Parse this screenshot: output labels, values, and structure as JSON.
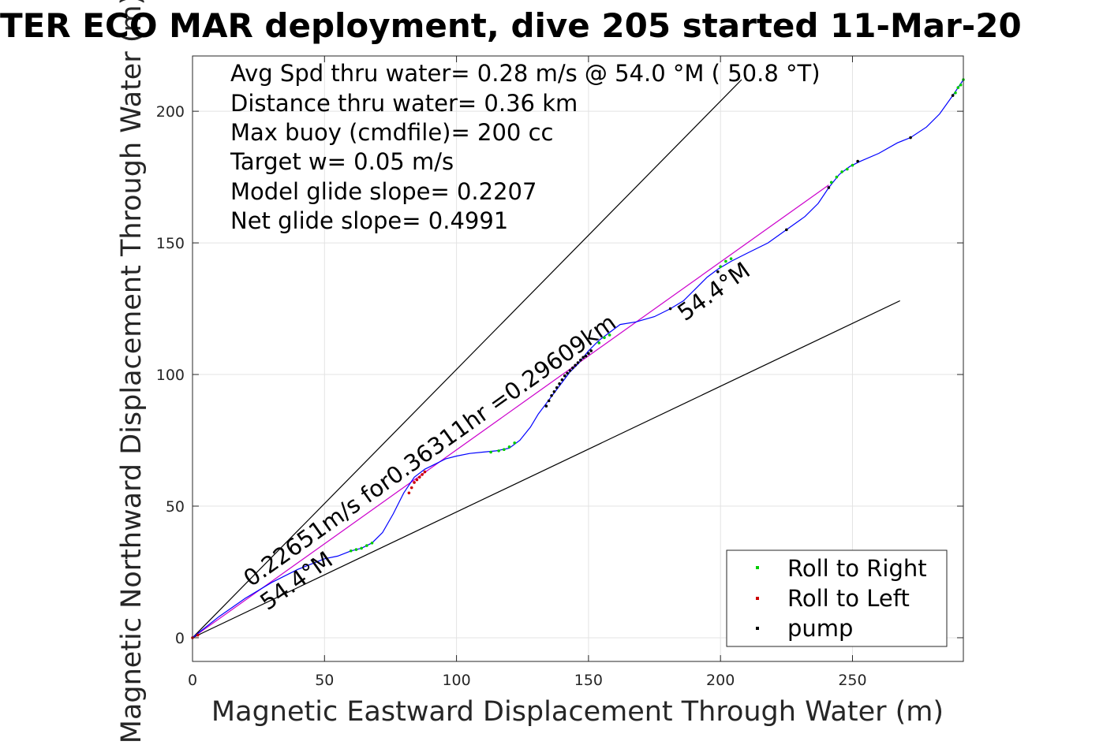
{
  "chart_data": {
    "type": "scatter",
    "title": "TER ECO MAR deployment, dive 205 started 11-Mar-20",
    "xlabel": "Magnetic Eastward Displacement Through Water (m)",
    "ylabel": "Magnetic Northward Displacement Through Water (m)",
    "xlim": [
      0,
      292
    ],
    "ylim": [
      -9,
      221
    ],
    "xticks": [
      0,
      50,
      100,
      150,
      200,
      250
    ],
    "yticks": [
      0,
      50,
      100,
      150,
      200
    ],
    "grid": true,
    "legend_position": "bottom-right",
    "info_lines": [
      "Avg Spd thru water=  0.28 m/s @  54.0 °M ( 50.8 °T)",
      "Distance thru water=  0.36 km",
      "Max buoy (cmdfile)= 200 cc",
      "Target w= 0.05 m/s",
      "Model glide slope= 0.2207",
      "Net glide slope= 0.4991"
    ],
    "annotations": {
      "avg_vector": "0.22651m/s for0.36311hr =0.29609km",
      "heading_lower": "54.4°M",
      "heading_upper": "54.4°M"
    },
    "lines": [
      {
        "role": "upper-bound",
        "color": "#000000",
        "x": [
          0,
          208
        ],
        "y": [
          0,
          212
        ]
      },
      {
        "role": "lower-bound",
        "color": "#000000",
        "x": [
          0,
          268
        ],
        "y": [
          0,
          128
        ]
      },
      {
        "role": "net-displacement",
        "color": "#cc00cc",
        "x": [
          0,
          241
        ],
        "y": [
          0,
          172
        ]
      },
      {
        "role": "track",
        "color": "#0000ff",
        "x": [
          0,
          10,
          20,
          30,
          40,
          50,
          55,
          60,
          64,
          68,
          72,
          76,
          80,
          84,
          88,
          92,
          96,
          100,
          105,
          110,
          115,
          120,
          124,
          128,
          131,
          134,
          137,
          140,
          143,
          146,
          150,
          154,
          158,
          162,
          168,
          175,
          181,
          186,
          191,
          195,
          199,
          204,
          210,
          218,
          225,
          232,
          237,
          241,
          245,
          249,
          253,
          260,
          267,
          272,
          278,
          283,
          288,
          292
        ],
        "y": [
          0,
          8,
          15,
          21,
          26,
          30,
          31,
          33,
          34,
          36,
          40,
          47,
          55,
          61,
          64,
          66,
          68,
          69,
          70,
          70.5,
          71,
          72,
          75,
          80,
          85,
          89,
          93,
          97,
          101,
          104,
          109,
          113,
          116,
          119,
          120,
          122,
          125,
          128,
          133,
          137,
          140,
          143,
          146,
          150,
          155,
          160,
          165,
          171,
          176,
          179,
          181,
          184,
          188,
          190,
          194,
          199,
          206,
          212
        ]
      }
    ],
    "series": [
      {
        "name": "Roll to Right",
        "color": "#00cc00",
        "x": [
          60,
          62,
          64,
          66,
          68,
          113,
          116,
          118,
          120,
          122,
          154,
          156,
          158,
          200,
          202,
          204,
          242,
          244,
          246,
          248,
          250,
          289,
          290,
          291,
          292
        ],
        "y": [
          33,
          33.5,
          34,
          35,
          36,
          70.5,
          71,
          71.5,
          72.5,
          74,
          112,
          114,
          115,
          141,
          143,
          144,
          173,
          175,
          177,
          178,
          179.5,
          207,
          209,
          210,
          212
        ]
      },
      {
        "name": "Roll to Left",
        "color": "#cc0000",
        "x": [
          0,
          2,
          82,
          83,
          84,
          85,
          86,
          87,
          88
        ],
        "y": [
          0,
          1,
          55,
          57,
          59,
          60,
          61,
          62,
          63
        ]
      },
      {
        "name": "pump",
        "color": "#000000",
        "x": [
          134,
          135,
          136,
          137,
          138,
          139,
          140,
          141,
          142,
          143,
          144,
          145,
          146,
          147,
          148,
          149,
          150,
          151,
          181,
          199,
          225,
          241,
          252,
          272,
          288
        ],
        "y": [
          88,
          90,
          92,
          93.5,
          95,
          96.5,
          98,
          99.5,
          100.5,
          101.5,
          102.5,
          103.5,
          104.5,
          105.5,
          106.5,
          107,
          108,
          109,
          125,
          139,
          155,
          171,
          181,
          190,
          206
        ]
      }
    ]
  }
}
